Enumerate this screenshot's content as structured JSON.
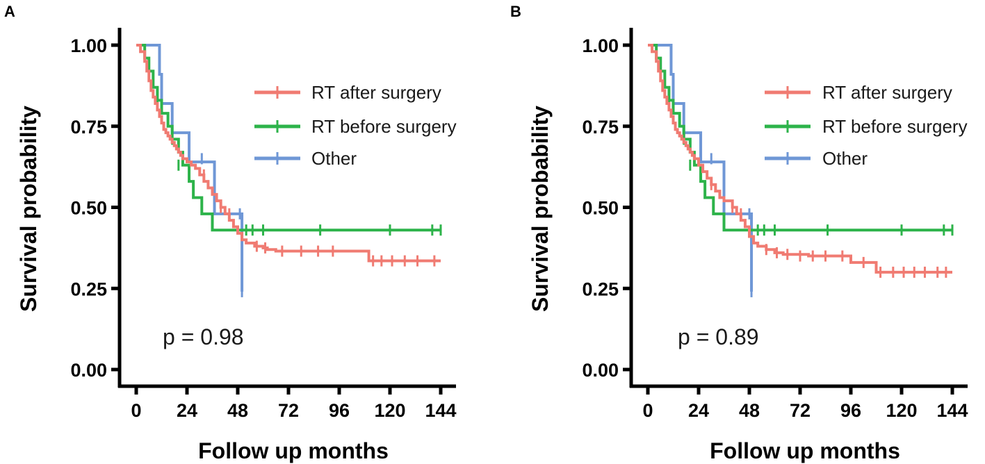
{
  "colors": {
    "RT after surgery": "#F07B72",
    "RT before surgery": "#2DB34A",
    "Other": "#6F97D6"
  },
  "chart_data": [
    {
      "type": "line",
      "panel": "A",
      "xlabel": "Follow up months",
      "ylabel": "Survival probability",
      "xlim": [
        0,
        144
      ],
      "ylim": [
        0,
        1
      ],
      "xticks": [
        0,
        24,
        48,
        72,
        96,
        120,
        144
      ],
      "yticks": [
        0,
        0.25,
        0.5,
        0.75,
        1
      ],
      "ytick_labels": [
        "0.00",
        "0.25",
        "0.50",
        "0.75",
        "1.00"
      ],
      "legend": [
        "RT after surgery",
        "RT before surgery",
        "Other"
      ],
      "annotation": "p = 0.98",
      "series": [
        {
          "name": "RT after surgery",
          "steps": [
            [
              0,
              1
            ],
            [
              2,
              0.98
            ],
            [
              4,
              0.95
            ],
            [
              5,
              0.92
            ],
            [
              6,
              0.89
            ],
            [
              7,
              0.86
            ],
            [
              8,
              0.84
            ],
            [
              9,
              0.82
            ],
            [
              10,
              0.8
            ],
            [
              11,
              0.78
            ],
            [
              12,
              0.76
            ],
            [
              13,
              0.74
            ],
            [
              14,
              0.73
            ],
            [
              15,
              0.72
            ],
            [
              16,
              0.71
            ],
            [
              17,
              0.7
            ],
            [
              18,
              0.69
            ],
            [
              19,
              0.68
            ],
            [
              20,
              0.67
            ],
            [
              21,
              0.66
            ],
            [
              22,
              0.65
            ],
            [
              24,
              0.64
            ],
            [
              26,
              0.63
            ],
            [
              28,
              0.62
            ],
            [
              30,
              0.6
            ],
            [
              32,
              0.58
            ],
            [
              34,
              0.56
            ],
            [
              36,
              0.54
            ],
            [
              38,
              0.52
            ],
            [
              40,
              0.5
            ],
            [
              42,
              0.48
            ],
            [
              44,
              0.46
            ],
            [
              46,
              0.44
            ],
            [
              48,
              0.42
            ],
            [
              50,
              0.4
            ],
            [
              52,
              0.39
            ],
            [
              56,
              0.38
            ],
            [
              60,
              0.375
            ],
            [
              62,
              0.37
            ],
            [
              66,
              0.365
            ],
            [
              110,
              0.335
            ]
          ],
          "end": 144,
          "censors": [
            [
              32,
              0.6
            ],
            [
              40,
              0.5
            ],
            [
              44,
              0.48
            ],
            [
              57,
              0.38
            ],
            [
              61,
              0.375
            ],
            [
              69,
              0.365
            ],
            [
              78,
              0.365
            ],
            [
              86,
              0.365
            ],
            [
              93,
              0.365
            ],
            [
              112,
              0.335
            ],
            [
              116,
              0.335
            ],
            [
              121,
              0.335
            ],
            [
              127,
              0.335
            ],
            [
              133,
              0.335
            ],
            [
              141,
              0.335
            ]
          ]
        },
        {
          "name": "RT before surgery",
          "steps": [
            [
              0,
              1
            ],
            [
              4,
              0.96
            ],
            [
              6,
              0.92
            ],
            [
              8,
              0.87
            ],
            [
              10,
              0.83
            ],
            [
              12,
              0.79
            ],
            [
              15,
              0.75
            ],
            [
              17,
              0.71
            ],
            [
              20,
              0.67
            ],
            [
              22,
              0.63
            ],
            [
              25,
              0.58
            ],
            [
              27,
              0.53
            ],
            [
              31,
              0.48
            ],
            [
              36,
              0.43
            ]
          ],
          "end": 144,
          "censors": [
            [
              10,
              0.83
            ],
            [
              17,
              0.71
            ],
            [
              20,
              0.63
            ],
            [
              52,
              0.43
            ],
            [
              55,
              0.43
            ],
            [
              60,
              0.43
            ],
            [
              87,
              0.43
            ],
            [
              120,
              0.43
            ],
            [
              140,
              0.43
            ],
            [
              144,
              0.43
            ]
          ]
        },
        {
          "name": "Other",
          "steps": [
            [
              0,
              1
            ],
            [
              11,
              0.91
            ],
            [
              12,
              0.82
            ],
            [
              17,
              0.73
            ],
            [
              25,
              0.64
            ],
            [
              37,
              0.48
            ],
            [
              50,
              0.24
            ]
          ],
          "end": 50,
          "censors": [
            [
              31,
              0.65
            ],
            [
              49,
              0.48
            ],
            [
              50,
              0.24
            ]
          ]
        }
      ]
    },
    {
      "type": "line",
      "panel": "B",
      "xlabel": "Follow up months",
      "ylabel": "Survival probability",
      "xlim": [
        0,
        144
      ],
      "ylim": [
        0,
        1
      ],
      "xticks": [
        0,
        24,
        48,
        72,
        96,
        120,
        144
      ],
      "yticks": [
        0,
        0.25,
        0.5,
        0.75,
        1
      ],
      "ytick_labels": [
        "0.00",
        "0.25",
        "0.50",
        "0.75",
        "1.00"
      ],
      "legend": [
        "RT after surgery",
        "RT before surgery",
        "Other"
      ],
      "annotation": "p = 0.89",
      "series": [
        {
          "name": "RT after surgery",
          "steps": [
            [
              0,
              1
            ],
            [
              2,
              0.98
            ],
            [
              4,
              0.95
            ],
            [
              5,
              0.92
            ],
            [
              6,
              0.89
            ],
            [
              7,
              0.86
            ],
            [
              8,
              0.84
            ],
            [
              9,
              0.82
            ],
            [
              10,
              0.8
            ],
            [
              11,
              0.78
            ],
            [
              12,
              0.76
            ],
            [
              13,
              0.74
            ],
            [
              14,
              0.73
            ],
            [
              15,
              0.72
            ],
            [
              16,
              0.71
            ],
            [
              17,
              0.7
            ],
            [
              18,
              0.69
            ],
            [
              19,
              0.68
            ],
            [
              20,
              0.67
            ],
            [
              21,
              0.66
            ],
            [
              22,
              0.65
            ],
            [
              24,
              0.63
            ],
            [
              26,
              0.61
            ],
            [
              28,
              0.59
            ],
            [
              30,
              0.57
            ],
            [
              32,
              0.55
            ],
            [
              34,
              0.53
            ],
            [
              36,
              0.52
            ],
            [
              40,
              0.5
            ],
            [
              42,
              0.48
            ],
            [
              44,
              0.46
            ],
            [
              46,
              0.44
            ],
            [
              48,
              0.41
            ],
            [
              50,
              0.39
            ],
            [
              52,
              0.38
            ],
            [
              56,
              0.37
            ],
            [
              60,
              0.36
            ],
            [
              64,
              0.355
            ],
            [
              76,
              0.35
            ],
            [
              96,
              0.33
            ],
            [
              108,
              0.3
            ]
          ],
          "end": 144,
          "censors": [
            [
              30,
              0.57
            ],
            [
              40,
              0.5
            ],
            [
              44,
              0.48
            ],
            [
              56,
              0.37
            ],
            [
              61,
              0.36
            ],
            [
              66,
              0.355
            ],
            [
              72,
              0.35
            ],
            [
              78,
              0.35
            ],
            [
              84,
              0.35
            ],
            [
              92,
              0.35
            ],
            [
              102,
              0.33
            ],
            [
              110,
              0.3
            ],
            [
              116,
              0.3
            ],
            [
              121,
              0.3
            ],
            [
              126,
              0.3
            ],
            [
              131,
              0.3
            ],
            [
              137,
              0.3
            ],
            [
              141,
              0.3
            ]
          ]
        },
        {
          "name": "RT before surgery",
          "steps": [
            [
              0,
              1
            ],
            [
              4,
              0.96
            ],
            [
              6,
              0.92
            ],
            [
              8,
              0.87
            ],
            [
              10,
              0.83
            ],
            [
              12,
              0.79
            ],
            [
              15,
              0.75
            ],
            [
              17,
              0.71
            ],
            [
              20,
              0.67
            ],
            [
              22,
              0.63
            ],
            [
              25,
              0.58
            ],
            [
              27,
              0.53
            ],
            [
              31,
              0.48
            ],
            [
              36,
              0.43
            ]
          ],
          "end": 144,
          "censors": [
            [
              10,
              0.83
            ],
            [
              17,
              0.71
            ],
            [
              20,
              0.63
            ],
            [
              52,
              0.43
            ],
            [
              55,
              0.43
            ],
            [
              60,
              0.43
            ],
            [
              85,
              0.43
            ],
            [
              120,
              0.43
            ],
            [
              140,
              0.43
            ],
            [
              144,
              0.43
            ]
          ]
        },
        {
          "name": "Other",
          "steps": [
            [
              0,
              1
            ],
            [
              11,
              0.91
            ],
            [
              12,
              0.82
            ],
            [
              17,
              0.73
            ],
            [
              25,
              0.64
            ],
            [
              36,
              0.48
            ],
            [
              49,
              0.24
            ]
          ],
          "end": 49,
          "censors": [
            [
              30,
              0.65
            ],
            [
              48,
              0.48
            ],
            [
              49,
              0.24
            ]
          ]
        }
      ]
    }
  ]
}
